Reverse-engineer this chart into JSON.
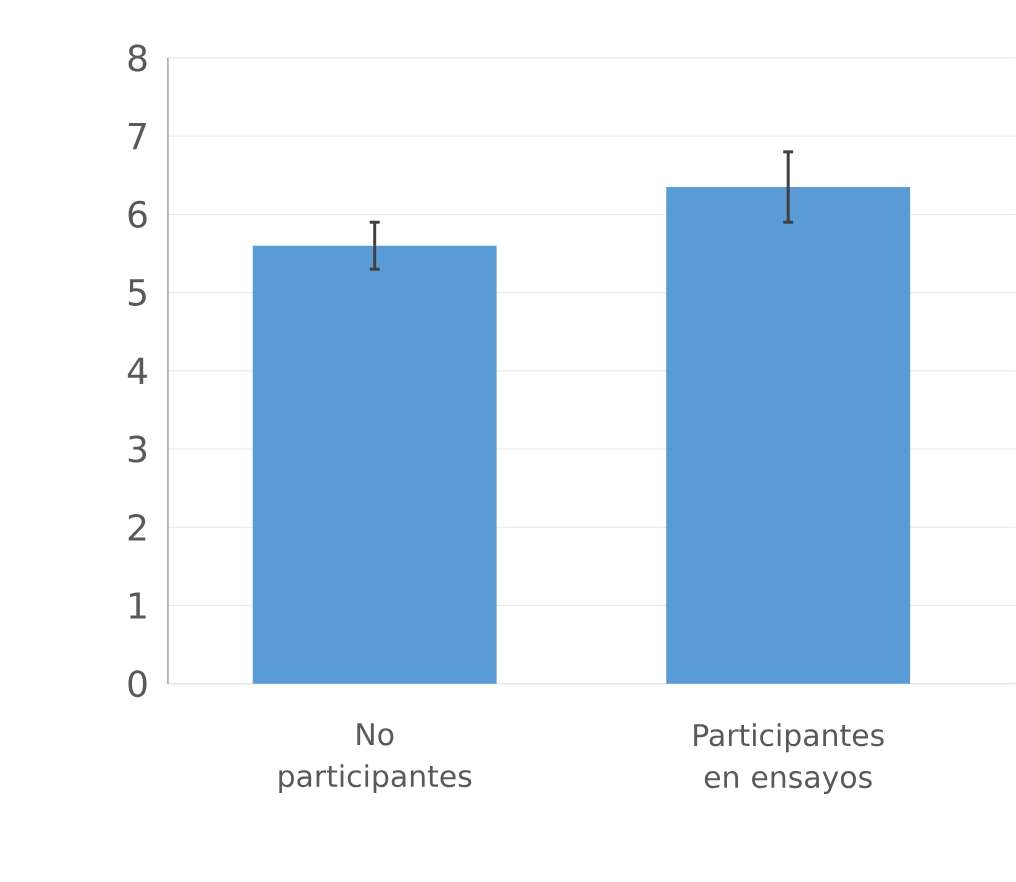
{
  "chart_data": {
    "type": "bar",
    "categories": [
      "No participantes",
      "Participantes en ensayos"
    ],
    "values": [
      5.6,
      6.35
    ],
    "errors": [
      0.3,
      0.45
    ],
    "color": "#5b9bd5",
    "ylim": [
      0,
      8
    ],
    "yticks": [
      0,
      1,
      2,
      3,
      4,
      5,
      6,
      7,
      8
    ],
    "grid": "y"
  }
}
